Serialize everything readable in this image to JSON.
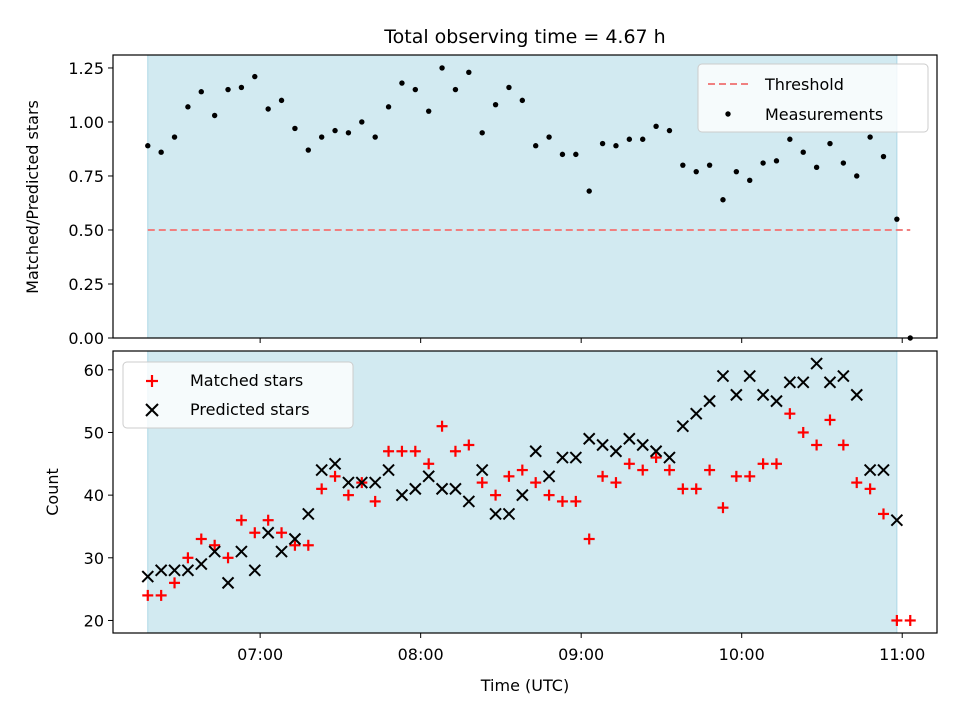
{
  "chart_data": [
    {
      "type": "scatter",
      "title": "Total observing time = 4.67 h",
      "xlabel": "",
      "ylabel": "Matched/Predicted stars",
      "ylim": [
        0,
        1.31
      ],
      "yticks": [
        "0.00",
        "0.25",
        "0.50",
        "0.75",
        "1.00",
        "1.25"
      ],
      "xlim": [
        "06:05",
        "11:13"
      ],
      "observing_window": [
        "06:18",
        "10:58"
      ],
      "window_color": "#add8e6",
      "legend_position": "upper right",
      "threshold": {
        "name": "Threshold",
        "value": 0.5,
        "x_range": [
          "06:18",
          "11:03"
        ],
        "color": "#f08080",
        "style": "dashed"
      },
      "series": [
        {
          "name": "Measurements",
          "marker": "dot",
          "color": "#000000",
          "x": [
            "06:18",
            "06:23",
            "06:28",
            "06:33",
            "06:38",
            "06:43",
            "06:48",
            "06:53",
            "06:58",
            "07:03",
            "07:08",
            "07:13",
            "07:18",
            "07:23",
            "07:28",
            "07:33",
            "07:38",
            "07:43",
            "07:48",
            "07:53",
            "07:58",
            "08:03",
            "08:08",
            "08:13",
            "08:18",
            "08:23",
            "08:28",
            "08:33",
            "08:38",
            "08:43",
            "08:48",
            "08:53",
            "08:58",
            "09:03",
            "09:08",
            "09:13",
            "09:18",
            "09:23",
            "09:28",
            "09:33",
            "09:38",
            "09:43",
            "09:48",
            "09:53",
            "09:58",
            "10:03",
            "10:08",
            "10:13",
            "10:18",
            "10:23",
            "10:28",
            "10:33",
            "10:38",
            "10:43",
            "10:48",
            "10:53",
            "10:58",
            "11:03"
          ],
          "y": [
            0.89,
            0.86,
            0.93,
            1.07,
            1.14,
            1.03,
            1.15,
            1.16,
            1.21,
            1.06,
            1.1,
            0.97,
            0.87,
            0.93,
            0.96,
            0.95,
            1.0,
            0.93,
            1.07,
            1.18,
            1.15,
            1.05,
            1.25,
            1.15,
            1.23,
            0.95,
            1.08,
            1.16,
            1.1,
            0.89,
            0.93,
            0.85,
            0.85,
            0.68,
            0.9,
            0.89,
            0.92,
            0.92,
            0.98,
            0.96,
            0.8,
            0.77,
            0.8,
            0.64,
            0.77,
            0.73,
            0.81,
            0.82,
            0.92,
            0.86,
            0.79,
            0.9,
            0.81,
            0.75,
            0.93,
            0.84,
            0.55,
            0.0
          ]
        }
      ]
    },
    {
      "type": "scatter",
      "title": "",
      "xlabel": "Time (UTC)",
      "ylabel": "Count",
      "ylim": [
        18,
        63
      ],
      "yticks": [
        "20",
        "30",
        "40",
        "50",
        "60"
      ],
      "xticks": [
        "07:00",
        "08:00",
        "09:00",
        "10:00",
        "11:00"
      ],
      "xlim": [
        "06:05",
        "11:13"
      ],
      "observing_window": [
        "06:18",
        "10:58"
      ],
      "window_color": "#add8e6",
      "legend_position": "upper left",
      "series": [
        {
          "name": "Matched stars",
          "marker": "plus",
          "color": "#ff0000",
          "x": [
            "06:18",
            "06:23",
            "06:28",
            "06:33",
            "06:38",
            "06:43",
            "06:48",
            "06:53",
            "06:58",
            "07:03",
            "07:08",
            "07:13",
            "07:18",
            "07:23",
            "07:28",
            "07:33",
            "07:38",
            "07:43",
            "07:48",
            "07:53",
            "07:58",
            "08:03",
            "08:08",
            "08:13",
            "08:18",
            "08:23",
            "08:28",
            "08:33",
            "08:38",
            "08:43",
            "08:48",
            "08:53",
            "08:58",
            "09:03",
            "09:08",
            "09:13",
            "09:18",
            "09:23",
            "09:28",
            "09:33",
            "09:38",
            "09:43",
            "09:48",
            "09:53",
            "09:58",
            "10:03",
            "10:08",
            "10:13",
            "10:18",
            "10:23",
            "10:28",
            "10:33",
            "10:38",
            "10:43",
            "10:48",
            "10:53",
            "10:58",
            "11:03"
          ],
          "y": [
            24,
            24,
            26,
            30,
            33,
            32,
            30,
            36,
            34,
            36,
            34,
            32,
            32,
            41,
            43,
            40,
            42,
            39,
            47,
            47,
            47,
            45,
            51,
            47,
            48,
            42,
            40,
            43,
            44,
            42,
            40,
            39,
            39,
            33,
            43,
            42,
            45,
            44,
            46,
            44,
            41,
            41,
            44,
            38,
            43,
            43,
            45,
            45,
            53,
            50,
            48,
            52,
            48,
            42,
            41,
            37,
            20,
            20
          ]
        },
        {
          "name": "Predicted stars",
          "marker": "x",
          "color": "#000000",
          "x": [
            "06:18",
            "06:23",
            "06:28",
            "06:33",
            "06:38",
            "06:43",
            "06:48",
            "06:53",
            "06:58",
            "07:03",
            "07:08",
            "07:13",
            "07:18",
            "07:23",
            "07:28",
            "07:33",
            "07:38",
            "07:43",
            "07:48",
            "07:53",
            "07:58",
            "08:03",
            "08:08",
            "08:13",
            "08:18",
            "08:23",
            "08:28",
            "08:33",
            "08:38",
            "08:43",
            "08:48",
            "08:53",
            "08:58",
            "09:03",
            "09:08",
            "09:13",
            "09:18",
            "09:23",
            "09:28",
            "09:33",
            "09:38",
            "09:43",
            "09:48",
            "09:53",
            "09:58",
            "10:03",
            "10:08",
            "10:13",
            "10:18",
            "10:23",
            "10:28",
            "10:33",
            "10:38",
            "10:43",
            "10:48",
            "10:53",
            "10:58"
          ],
          "y": [
            27,
            28,
            28,
            28,
            29,
            31,
            26,
            31,
            28,
            34,
            31,
            33,
            37,
            44,
            45,
            42,
            42,
            42,
            44,
            40,
            41,
            43,
            41,
            41,
            39,
            44,
            37,
            37,
            40,
            47,
            43,
            46,
            46,
            49,
            48,
            47,
            49,
            48,
            47,
            46,
            51,
            53,
            55,
            59,
            56,
            59,
            56,
            55,
            58,
            58,
            61,
            58,
            59,
            56,
            44,
            44,
            36
          ]
        }
      ]
    }
  ]
}
